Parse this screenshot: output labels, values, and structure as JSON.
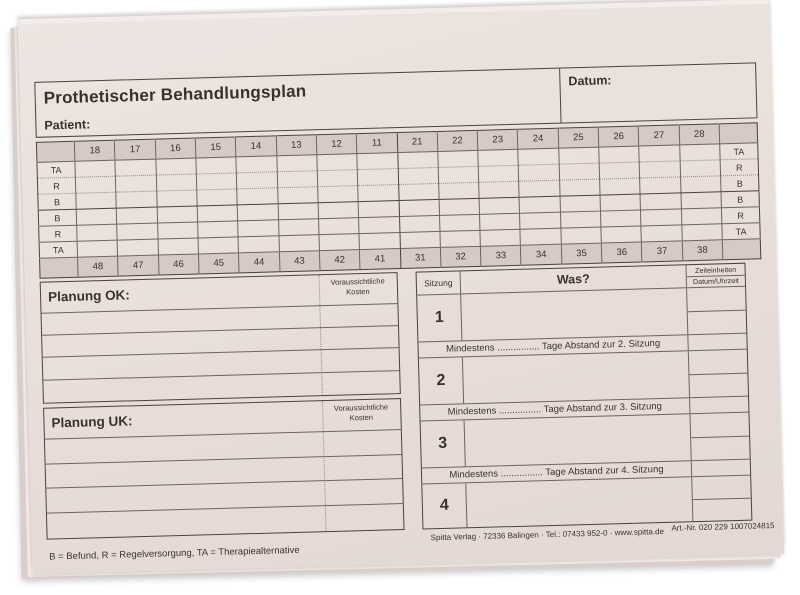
{
  "form": {
    "title": "Prothetischer Behandlungsplan",
    "datum_label": "Datum:",
    "patient_label": "Patient:",
    "teeth_chart": {
      "upper_teeth": [
        "18",
        "17",
        "16",
        "15",
        "14",
        "13",
        "12",
        "11",
        "21",
        "22",
        "23",
        "24",
        "25",
        "26",
        "27",
        "28"
      ],
      "lower_teeth": [
        "48",
        "47",
        "46",
        "45",
        "44",
        "43",
        "42",
        "41",
        "31",
        "32",
        "33",
        "34",
        "35",
        "36",
        "37",
        "38"
      ],
      "left_row_labels": [
        "TA",
        "R",
        "B",
        "B",
        "R",
        "TA"
      ],
      "right_row_labels": [
        "TA",
        "R",
        "B",
        "B",
        "R",
        "TA"
      ]
    },
    "planung_ok": {
      "label": "Planung OK:",
      "kosten_header": "Voraussichtliche Kosten"
    },
    "planung_uk": {
      "label": "Planung UK:",
      "kosten_header": "Voraussichtliche Kosten"
    },
    "sitzung": {
      "col_sitzung": "Sitzung",
      "col_was": "Was?",
      "col_zeiteinheiten": "Zeiteinheiten",
      "col_datum_uhrzeit": "Datum/Uhrzeit",
      "session_numbers": [
        "1",
        "2",
        "3",
        "4"
      ],
      "spacers": [
        "Mindestens ................ Tage Abstand zur 2. Sitzung",
        "Mindestens ................ Tage Abstand zur 3. Sitzung",
        "Mindestens ................ Tage Abstand zur 4. Sitzung"
      ]
    },
    "legend": "B = Befund, R = Regelversorgung, TA = Therapiealternative",
    "publisher": "Spitta Verlag · 72336 Balingen · Tel.: 07433 952-0 · www.spitta.de",
    "art_nr": "Art.-Nr. 020 229  1007024815"
  },
  "colors": {
    "paper": "#e8ddd9",
    "header_cell": "#d5cac5",
    "line_dark": "#4a433d",
    "line": "#6e655e",
    "text": "#38322d",
    "background": "#ffffff"
  }
}
